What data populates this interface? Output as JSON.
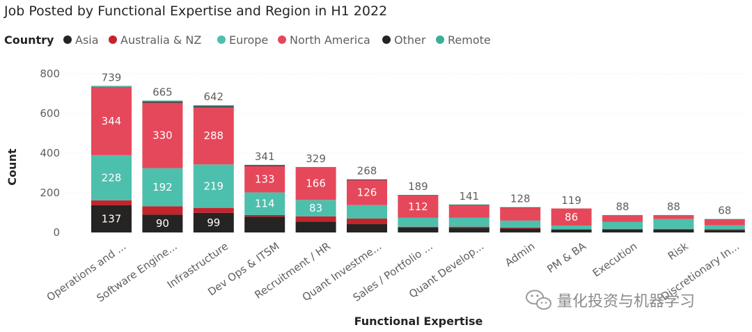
{
  "chart_data": {
    "type": "bar",
    "stacked": true,
    "title": "Job Posted by Functional Expertise and Region in H1 2022",
    "xlabel": "Functional Expertise",
    "ylabel": "Count",
    "ylim": [
      0,
      800
    ],
    "yticks": [
      "0",
      "200",
      "400",
      "600",
      "800"
    ],
    "legend": {
      "title": "Country",
      "position": "top-left",
      "items": [
        {
          "name": "Asia",
          "color": "#252423"
        },
        {
          "name": "Australia & NZ",
          "color": "#c4242c"
        },
        {
          "name": "Europe",
          "color": "#4dbfad"
        },
        {
          "name": "North America",
          "color": "#e5485a"
        },
        {
          "name": "Other",
          "color": "#252423"
        },
        {
          "name": "Remote",
          "color": "#3aae99"
        }
      ]
    },
    "categories": [
      "Operations and ...",
      "Software Engine...",
      "Infrastructure",
      "Dev Ops & ITSM",
      "Recruitment / HR",
      "Quant Investme...",
      "Sales / Portfolio ...",
      "Quant Develop...",
      "Admin",
      "PM & BA",
      "Execution",
      "Risk",
      "Discretionary In..."
    ],
    "totals": [
      739,
      665,
      642,
      341,
      329,
      268,
      189,
      141,
      128,
      119,
      88,
      88,
      68
    ],
    "series": [
      {
        "name": "Asia",
        "color": "#252423",
        "values": [
          137,
          90,
          99,
          80,
          55,
          42,
          25,
          24,
          20,
          15,
          15,
          15,
          13
        ],
        "labels": [
          "137",
          "90",
          "99",
          "",
          "",
          "",
          "",
          "",
          "",
          "",
          "",
          "",
          ""
        ]
      },
      {
        "name": "Australia & NZ",
        "color": "#c4242c",
        "values": [
          25,
          42,
          25,
          8,
          26,
          28,
          4,
          5,
          5,
          2,
          3,
          3,
          3
        ],
        "labels": [
          "",
          "",
          "",
          "",
          "",
          "",
          "",
          "",
          "",
          "",
          "",
          "",
          ""
        ]
      },
      {
        "name": "Europe",
        "color": "#4dbfad",
        "values": [
          228,
          192,
          219,
          114,
          83,
          68,
          45,
          45,
          35,
          18,
          35,
          50,
          20
        ],
        "labels": [
          "228",
          "192",
          "219",
          "114",
          "83",
          "",
          "",
          "",
          "",
          "",
          "",
          "",
          ""
        ]
      },
      {
        "name": "North America",
        "color": "#e5485a",
        "values": [
          344,
          330,
          288,
          133,
          166,
          126,
          112,
          63,
          65,
          86,
          33,
          18,
          30
        ],
        "labels": [
          "344",
          "330",
          "288",
          "133",
          "166",
          "126",
          "112",
          "",
          "",
          "86",
          "",
          "",
          ""
        ]
      },
      {
        "name": "Other",
        "color": "#252423",
        "values": [
          0,
          5,
          5,
          4,
          0,
          3,
          2,
          2,
          2,
          0,
          1,
          1,
          1
        ],
        "labels": [
          "",
          "",
          "",
          "",
          "",
          "",
          "",
          "",
          "",
          "",
          "",
          "",
          ""
        ]
      },
      {
        "name": "Remote",
        "color": "#3aae99",
        "values": [
          5,
          6,
          6,
          2,
          0,
          1,
          1,
          2,
          1,
          0,
          1,
          1,
          1
        ],
        "labels": [
          "",
          "",
          "",
          "",
          "",
          "",
          "",
          "",
          "",
          "",
          "",
          "",
          ""
        ]
      }
    ]
  },
  "watermark": {
    "text": "量化投资与机器学习",
    "icon": "wechat-icon"
  }
}
